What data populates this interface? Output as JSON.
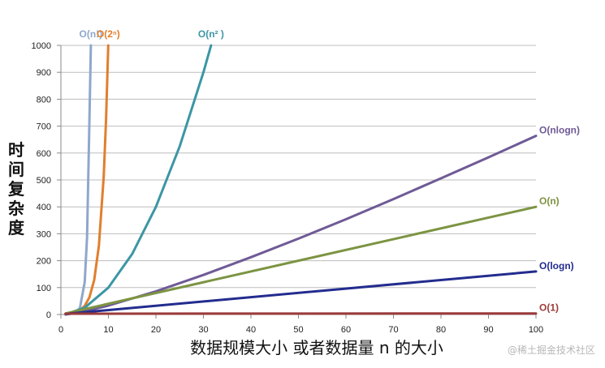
{
  "chart_data": {
    "type": "line",
    "ylabel": "时间复杂度",
    "xlabel": "数据规模大小 或者数据量 n 的大小",
    "xlim": [
      0,
      100
    ],
    "ylim": [
      0,
      1000
    ],
    "x_ticks": [
      "0",
      "10",
      "20",
      "30",
      "40",
      "50",
      "60",
      "70",
      "80",
      "90",
      "100"
    ],
    "y_ticks": [
      "0",
      "100",
      "200",
      "300",
      "400",
      "500",
      "600",
      "700",
      "800",
      "900",
      "1000"
    ],
    "grid": "horizontal",
    "series": [
      {
        "name": "O(n!)",
        "label": "O(n!)",
        "color": "#8fa7cc",
        "x": [
          1,
          2,
          3,
          4,
          5,
          5.5,
          6,
          6.3
        ],
        "y": [
          1,
          2,
          6,
          24,
          120,
          287,
          720,
          1000
        ]
      },
      {
        "name": "O(2ⁿ)",
        "label": "O(2ⁿ)",
        "color": "#e07f2e",
        "x": [
          1,
          2,
          3,
          4,
          5,
          6,
          7,
          8,
          9,
          9.5,
          9.97
        ],
        "y": [
          2,
          4,
          8,
          16,
          32,
          64,
          128,
          256,
          512,
          724,
          1000
        ]
      },
      {
        "name": "O(n²)",
        "label": "O(n² )",
        "color": "#3c96a4",
        "x": [
          1,
          5,
          10,
          15,
          20,
          25,
          30,
          31.6
        ],
        "y": [
          1,
          25,
          100,
          225,
          400,
          625,
          900,
          1000
        ]
      },
      {
        "name": "O(nlogn)",
        "label": "O(nlogn)",
        "color": "#6f5a96",
        "x": [
          1,
          5,
          10,
          20,
          30,
          40,
          50,
          60,
          70,
          80,
          90,
          100
        ],
        "y": [
          0,
          12,
          33,
          86,
          147,
          213,
          282,
          354,
          429,
          506,
          584,
          664
        ]
      },
      {
        "name": "O(n)",
        "label": "O(n)",
        "color": "#7c9442",
        "x": [
          1,
          100
        ],
        "y": [
          4,
          400
        ]
      },
      {
        "name": "O(logn)",
        "label": "O(logn)",
        "color": "#232c8e",
        "x": [
          1,
          100
        ],
        "y": [
          2,
          160
        ]
      },
      {
        "name": "O(1)",
        "label": "O(1)",
        "color": "#9b3a3a",
        "x": [
          1,
          100
        ],
        "y": [
          3,
          4
        ]
      }
    ]
  },
  "watermark": "@稀土掘金技术社区"
}
